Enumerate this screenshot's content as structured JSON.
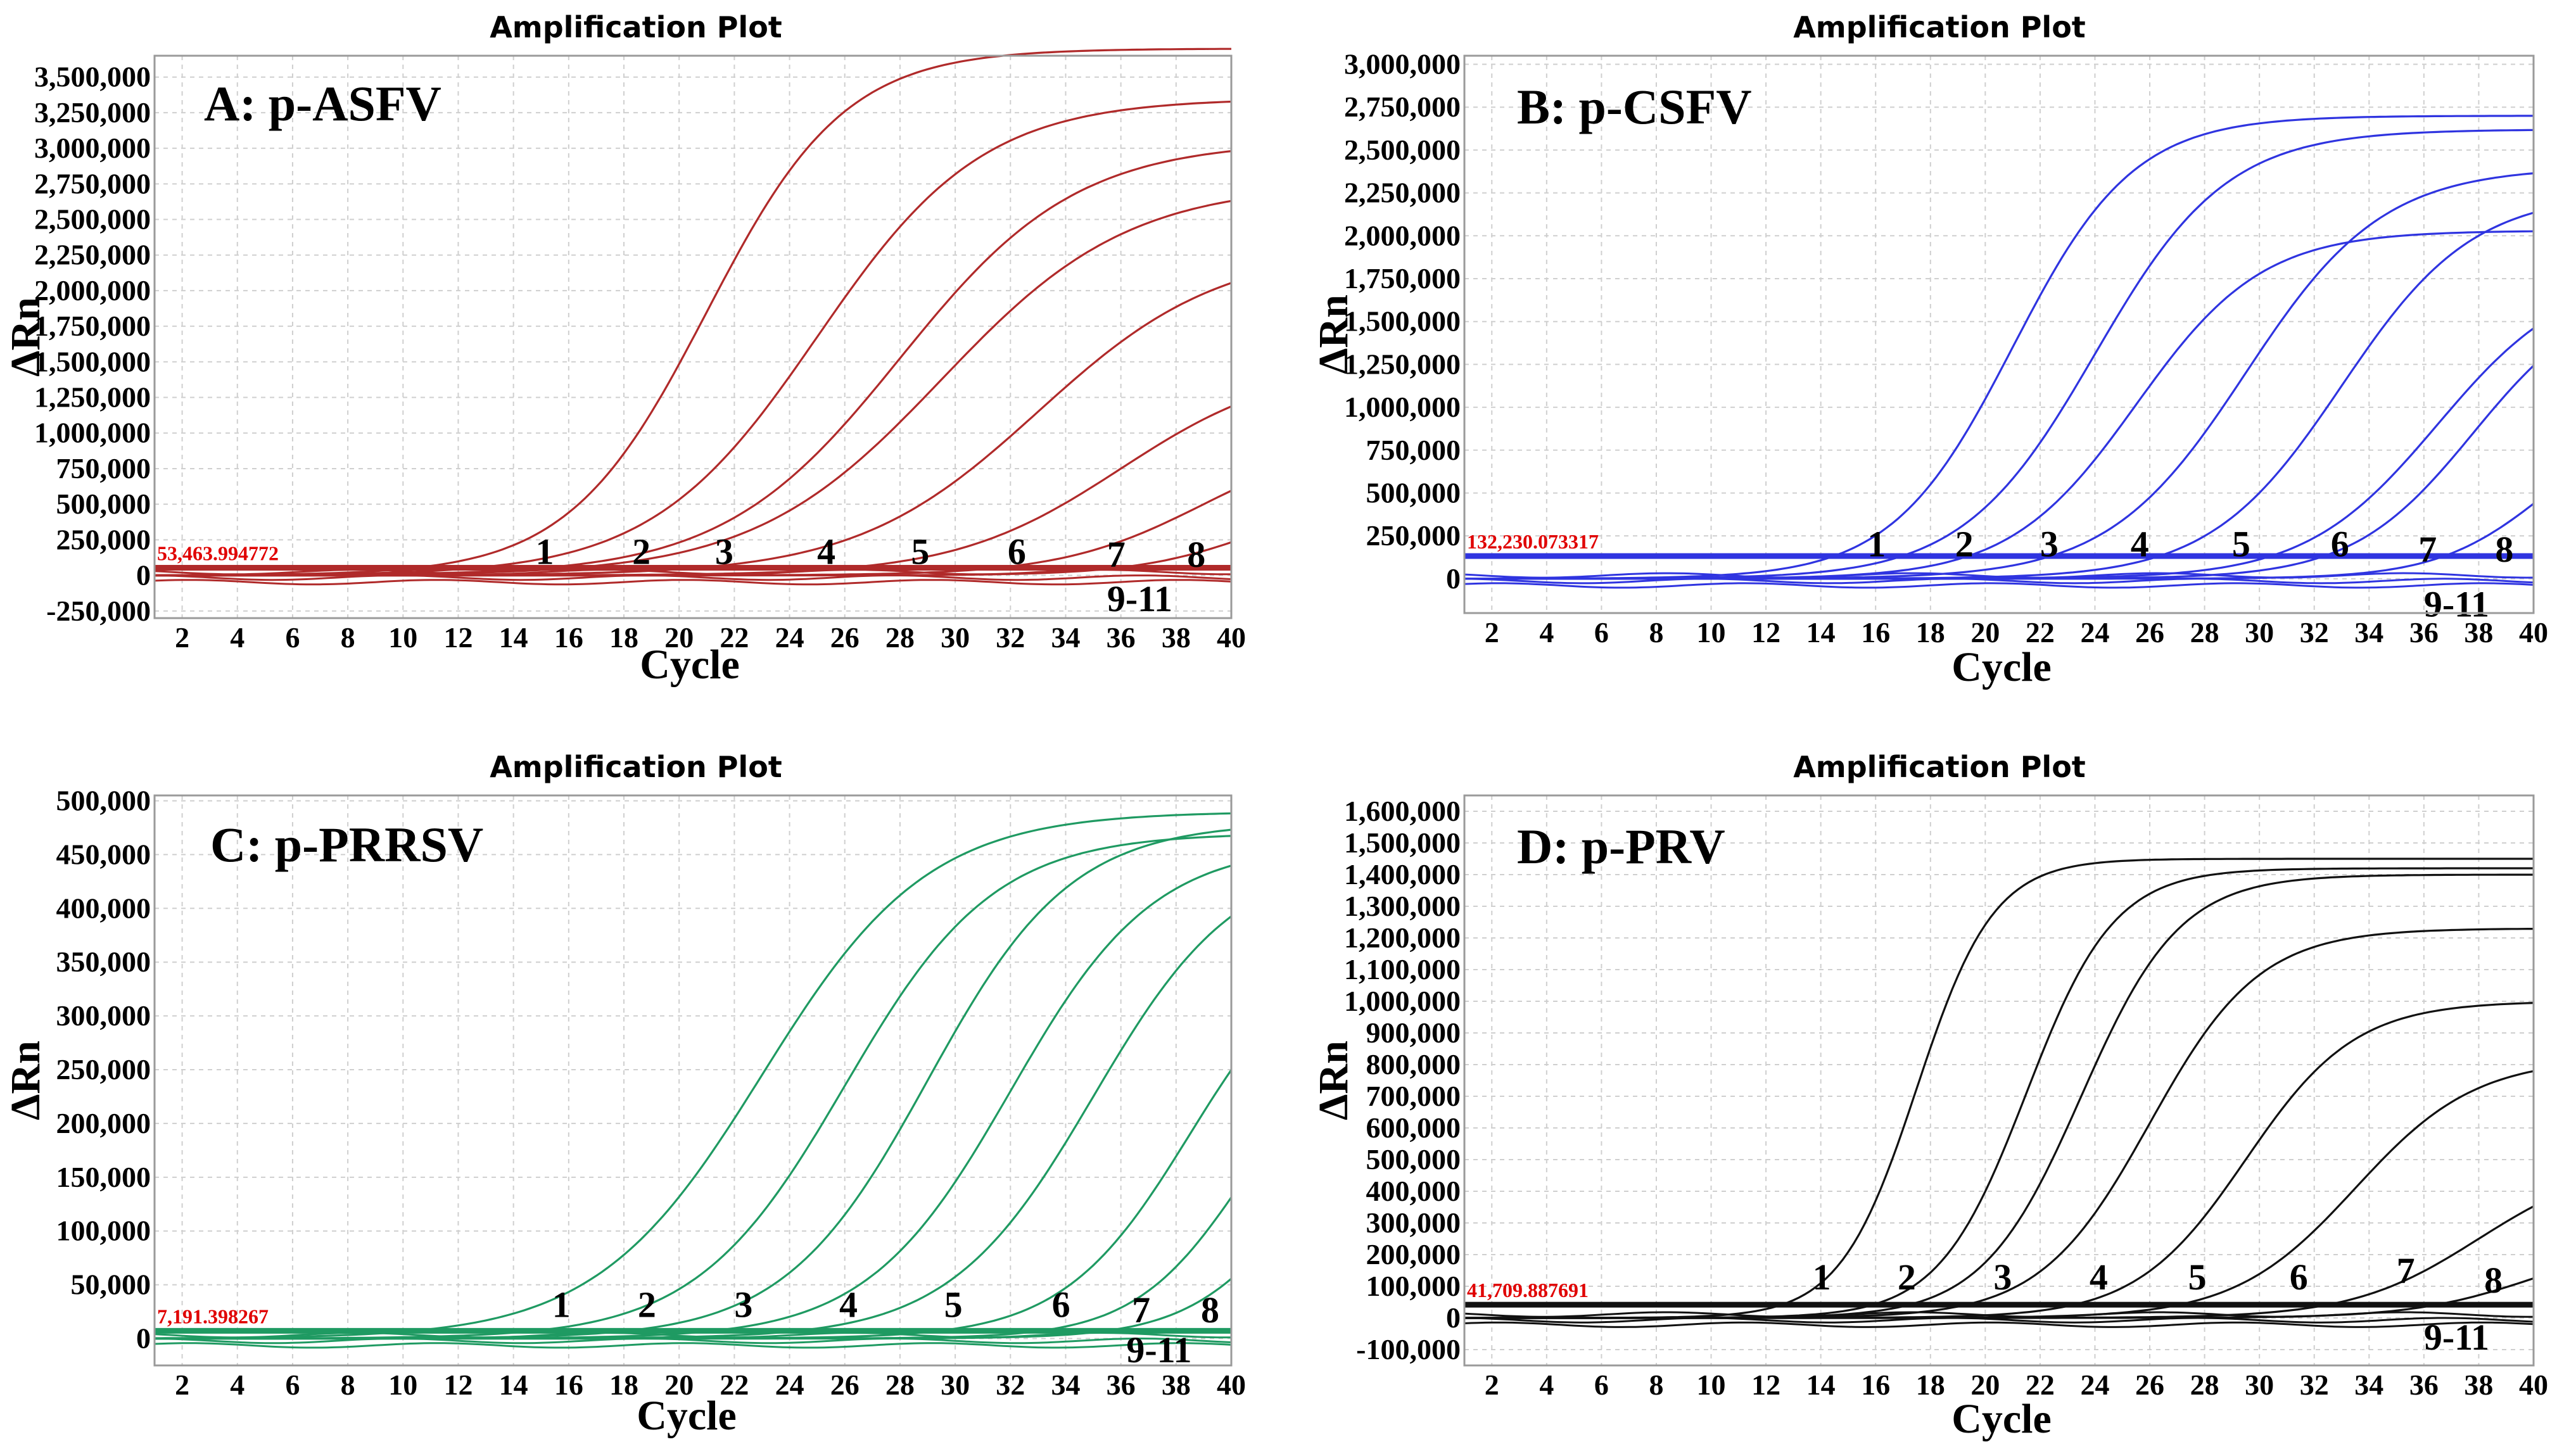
{
  "chart_data": [
    {
      "type": "line",
      "title": "Amplification Plot",
      "panel_label": "A: p-ASFV",
      "xlabel": "Cycle",
      "ylabel": "ΔRn",
      "xlim": [
        1,
        40
      ],
      "ylim": [
        -300000,
        3650000
      ],
      "x_ticks": [
        2,
        4,
        6,
        8,
        10,
        12,
        14,
        16,
        18,
        20,
        22,
        24,
        26,
        28,
        30,
        32,
        34,
        36,
        38,
        40
      ],
      "x_tick_labels": [
        "2",
        "4",
        "6",
        "8",
        "10",
        "12",
        "14",
        "16",
        "18",
        "20",
        "22",
        "24",
        "26",
        "28",
        "30",
        "32",
        "34",
        "36",
        "38",
        "40"
      ],
      "y_ticks": [
        -250000,
        0,
        250000,
        500000,
        750000,
        1000000,
        1250000,
        1500000,
        1750000,
        2000000,
        2250000,
        2500000,
        2750000,
        3000000,
        3250000,
        3500000
      ],
      "y_tick_labels": [
        "-250,000",
        "0",
        "250,000",
        "500,000",
        "750,000",
        "1,000,000",
        "1,250,000",
        "1,500,000",
        "1,750,000",
        "2,000,000",
        "2,250,000",
        "2,500,000",
        "2,750,000",
        "3,000,000",
        "3,250,000",
        "3,500,000"
      ],
      "color": "#b02a2a",
      "threshold": 53463.994772,
      "threshold_label": "53,463.994772",
      "threshold_color": "#c0151b",
      "series": [
        {
          "name": "1",
          "plateau": 3700000,
          "midpoint": 21.0,
          "slope": 2.5
        },
        {
          "name": "2",
          "plateau": 3350000,
          "midpoint": 25.0,
          "slope": 3.0
        },
        {
          "name": "3",
          "plateau": 3050000,
          "midpoint": 28.0,
          "slope": 3.2
        },
        {
          "name": "4",
          "plateau": 2750000,
          "midpoint": 29.5,
          "slope": 3.4
        },
        {
          "name": "5",
          "plateau": 2300000,
          "midpoint": 33.0,
          "slope": 3.3
        },
        {
          "name": "6",
          "plateau": 1500000,
          "midpoint": 36.0,
          "slope": 3.0
        },
        {
          "name": "7",
          "plateau": 1000000,
          "midpoint": 39.0,
          "slope": 2.6
        },
        {
          "name": "8",
          "plateau": 600000,
          "midpoint": 41.0,
          "slope": 2.2
        }
      ],
      "curve_labels": [
        {
          "text": "1",
          "x": 14.8,
          "y": 80000
        },
        {
          "text": "2",
          "x": 18.3,
          "y": 80000
        },
        {
          "text": "3",
          "x": 21.3,
          "y": 80000
        },
        {
          "text": "4",
          "x": 25.0,
          "y": 80000
        },
        {
          "text": "5",
          "x": 28.4,
          "y": 80000
        },
        {
          "text": "6",
          "x": 31.9,
          "y": 80000
        },
        {
          "text": "7",
          "x": 35.5,
          "y": 60000
        },
        {
          "text": "8",
          "x": 38.4,
          "y": 60000
        },
        {
          "text": "9-11",
          "x": 35.5,
          "y": -250000
        }
      ]
    },
    {
      "type": "line",
      "title": "Amplification Plot",
      "panel_label": "B: p-CSFV",
      "xlabel": "Cycle",
      "ylabel": "ΔRn",
      "xlim": [
        1,
        40
      ],
      "ylim": [
        -200000,
        3050000
      ],
      "x_ticks": [
        2,
        4,
        6,
        8,
        10,
        12,
        14,
        16,
        18,
        20,
        22,
        24,
        26,
        28,
        30,
        32,
        34,
        36,
        38,
        40
      ],
      "x_tick_labels": [
        "2",
        "4",
        "6",
        "8",
        "10",
        "12",
        "14",
        "16",
        "18",
        "20",
        "22",
        "24",
        "26",
        "28",
        "30",
        "32",
        "34",
        "36",
        "38",
        "40"
      ],
      "y_ticks": [
        0,
        250000,
        500000,
        750000,
        1000000,
        1250000,
        1500000,
        1750000,
        2000000,
        2250000,
        2500000,
        2750000,
        3000000
      ],
      "y_tick_labels": [
        "0",
        "250,000",
        "500,000",
        "750,000",
        "1,000,000",
        "1,250,000",
        "1,500,000",
        "1,750,000",
        "2,000,000",
        "2,250,000",
        "2,500,000",
        "2,750,000",
        "3,000,000"
      ],
      "color": "#2f34e0",
      "threshold": 132230.073317,
      "threshold_label": "132,230.073317",
      "threshold_color": "#c0151b",
      "series": [
        {
          "name": "1",
          "plateau": 2700000,
          "midpoint": 21.0,
          "slope": 2.2
        },
        {
          "name": "2",
          "plateau": 2620000,
          "midpoint": 24.0,
          "slope": 2.4
        },
        {
          "name": "3",
          "plateau": 2030000,
          "midpoint": 25.5,
          "slope": 2.3
        },
        {
          "name": "4",
          "plateau": 2400000,
          "midpoint": 29.5,
          "slope": 2.5
        },
        {
          "name": "5",
          "plateau": 2250000,
          "midpoint": 33.0,
          "slope": 2.4
        },
        {
          "name": "6",
          "plateau": 1800000,
          "midpoint": 36.5,
          "slope": 2.4
        },
        {
          "name": "7",
          "plateau": 1700000,
          "midpoint": 37.8,
          "slope": 2.2
        },
        {
          "name": "8",
          "plateau": 1000000,
          "midpoint": 40.5,
          "slope": 2.0
        }
      ],
      "curve_labels": [
        {
          "text": "1",
          "x": 15.7,
          "y": 130000
        },
        {
          "text": "2",
          "x": 18.9,
          "y": 130000
        },
        {
          "text": "3",
          "x": 22.0,
          "y": 130000
        },
        {
          "text": "4",
          "x": 25.3,
          "y": 130000
        },
        {
          "text": "5",
          "x": 29.0,
          "y": 130000
        },
        {
          "text": "6",
          "x": 32.6,
          "y": 130000
        },
        {
          "text": "7",
          "x": 35.8,
          "y": 100000
        },
        {
          "text": "8",
          "x": 38.6,
          "y": 100000
        },
        {
          "text": "9-11",
          "x": 36.0,
          "y": -220000
        }
      ]
    },
    {
      "type": "line",
      "title": "Amplification Plot",
      "panel_label": "C: p-PRRSV",
      "xlabel": "Cycle",
      "ylabel": "ΔRn",
      "xlim": [
        1,
        40
      ],
      "ylim": [
        -25000,
        505000
      ],
      "x_ticks": [
        2,
        4,
        6,
        8,
        10,
        12,
        14,
        16,
        18,
        20,
        22,
        24,
        26,
        28,
        30,
        32,
        34,
        36,
        38,
        40
      ],
      "x_tick_labels": [
        "2",
        "4",
        "6",
        "8",
        "10",
        "12",
        "14",
        "16",
        "18",
        "20",
        "22",
        "24",
        "26",
        "28",
        "30",
        "32",
        "34",
        "36",
        "38",
        "40"
      ],
      "y_ticks": [
        0,
        50000,
        100000,
        150000,
        200000,
        250000,
        300000,
        350000,
        400000,
        450000,
        500000
      ],
      "y_tick_labels": [
        "0",
        "50,000",
        "100,000",
        "150,000",
        "200,000",
        "250,000",
        "300,000",
        "350,000",
        "400,000",
        "450,000",
        "500,000"
      ],
      "color": "#1f9a62",
      "threshold": 7191.398267,
      "threshold_label": "7,191.398267",
      "threshold_color": "#c0151b",
      "series": [
        {
          "name": "1",
          "plateau": 490000,
          "midpoint": 23.0,
          "slope": 3.0
        },
        {
          "name": "2",
          "plateau": 470000,
          "midpoint": 26.0,
          "slope": 2.7
        },
        {
          "name": "3",
          "plateau": 480000,
          "midpoint": 29.0,
          "slope": 2.6
        },
        {
          "name": "4",
          "plateau": 460000,
          "midpoint": 32.0,
          "slope": 2.6
        },
        {
          "name": "5",
          "plateau": 450000,
          "midpoint": 35.0,
          "slope": 2.6
        },
        {
          "name": "6",
          "plateau": 380000,
          "midpoint": 38.5,
          "slope": 2.3
        },
        {
          "name": "7",
          "plateau": 300000,
          "midpoint": 40.5,
          "slope": 2.0
        },
        {
          "name": "8",
          "plateau": 250000,
          "midpoint": 42.5,
          "slope": 2.0
        }
      ],
      "curve_labels": [
        {
          "text": "1",
          "x": 15.4,
          "y": 20000
        },
        {
          "text": "2",
          "x": 18.5,
          "y": 20000
        },
        {
          "text": "3",
          "x": 22.0,
          "y": 20000
        },
        {
          "text": "4",
          "x": 25.8,
          "y": 20000
        },
        {
          "text": "5",
          "x": 29.6,
          "y": 20000
        },
        {
          "text": "6",
          "x": 33.5,
          "y": 20000
        },
        {
          "text": "7",
          "x": 36.4,
          "y": 15000
        },
        {
          "text": "8",
          "x": 38.9,
          "y": 15000
        },
        {
          "text": "9-11",
          "x": 36.2,
          "y": -22000
        }
      ]
    },
    {
      "type": "line",
      "title": "Amplification Plot",
      "panel_label": "D: p-PRV",
      "xlabel": "Cycle",
      "ylabel": "ΔRn",
      "xlim": [
        1,
        40
      ],
      "ylim": [
        -150000,
        1650000
      ],
      "x_ticks": [
        2,
        4,
        6,
        8,
        10,
        12,
        14,
        16,
        18,
        20,
        22,
        24,
        26,
        28,
        30,
        32,
        34,
        36,
        38,
        40
      ],
      "x_tick_labels": [
        "2",
        "4",
        "6",
        "8",
        "10",
        "12",
        "14",
        "16",
        "18",
        "20",
        "22",
        "24",
        "26",
        "28",
        "30",
        "32",
        "34",
        "36",
        "38",
        "40"
      ],
      "y_ticks": [
        -100000,
        0,
        100000,
        200000,
        300000,
        400000,
        500000,
        600000,
        700000,
        800000,
        900000,
        1000000,
        1100000,
        1200000,
        1300000,
        1400000,
        1500000,
        1600000
      ],
      "y_tick_labels": [
        "-100,000",
        "0",
        "100,000",
        "200,000",
        "300,000",
        "400,000",
        "500,000",
        "600,000",
        "700,000",
        "800,000",
        "900,000",
        "1,000,000",
        "1,100,000",
        "1,200,000",
        "1,300,000",
        "1,400,000",
        "1,500,000",
        "1,600,000"
      ],
      "color": "#111111",
      "threshold": 41709.887691,
      "threshold_label": "41,709.887691",
      "threshold_color": "#c0151b",
      "series": [
        {
          "name": "1",
          "plateau": 1450000,
          "midpoint": 17.5,
          "slope": 1.4
        },
        {
          "name": "2",
          "plateau": 1420000,
          "midpoint": 21.5,
          "slope": 1.6
        },
        {
          "name": "3",
          "plateau": 1400000,
          "midpoint": 23.5,
          "slope": 1.8
        },
        {
          "name": "4",
          "plateau": 1230000,
          "midpoint": 26.0,
          "slope": 2.0
        },
        {
          "name": "5",
          "plateau": 1000000,
          "midpoint": 29.5,
          "slope": 2.0
        },
        {
          "name": "6",
          "plateau": 820000,
          "midpoint": 33.5,
          "slope": 2.2
        },
        {
          "name": "7",
          "plateau": 500000,
          "midpoint": 38.0,
          "slope": 2.3
        },
        {
          "name": "8",
          "plateau": 250000,
          "midpoint": 40.0,
          "slope": 2.2
        }
      ],
      "curve_labels": [
        {
          "text": "1",
          "x": 13.7,
          "y": 90000
        },
        {
          "text": "2",
          "x": 16.8,
          "y": 90000
        },
        {
          "text": "3",
          "x": 20.3,
          "y": 90000
        },
        {
          "text": "4",
          "x": 23.8,
          "y": 90000
        },
        {
          "text": "5",
          "x": 27.4,
          "y": 90000
        },
        {
          "text": "6",
          "x": 31.1,
          "y": 90000
        },
        {
          "text": "7",
          "x": 35.0,
          "y": 110000
        },
        {
          "text": "8",
          "x": 38.2,
          "y": 80000
        },
        {
          "text": "9-11",
          "x": 36.0,
          "y": -100000
        }
      ]
    }
  ]
}
